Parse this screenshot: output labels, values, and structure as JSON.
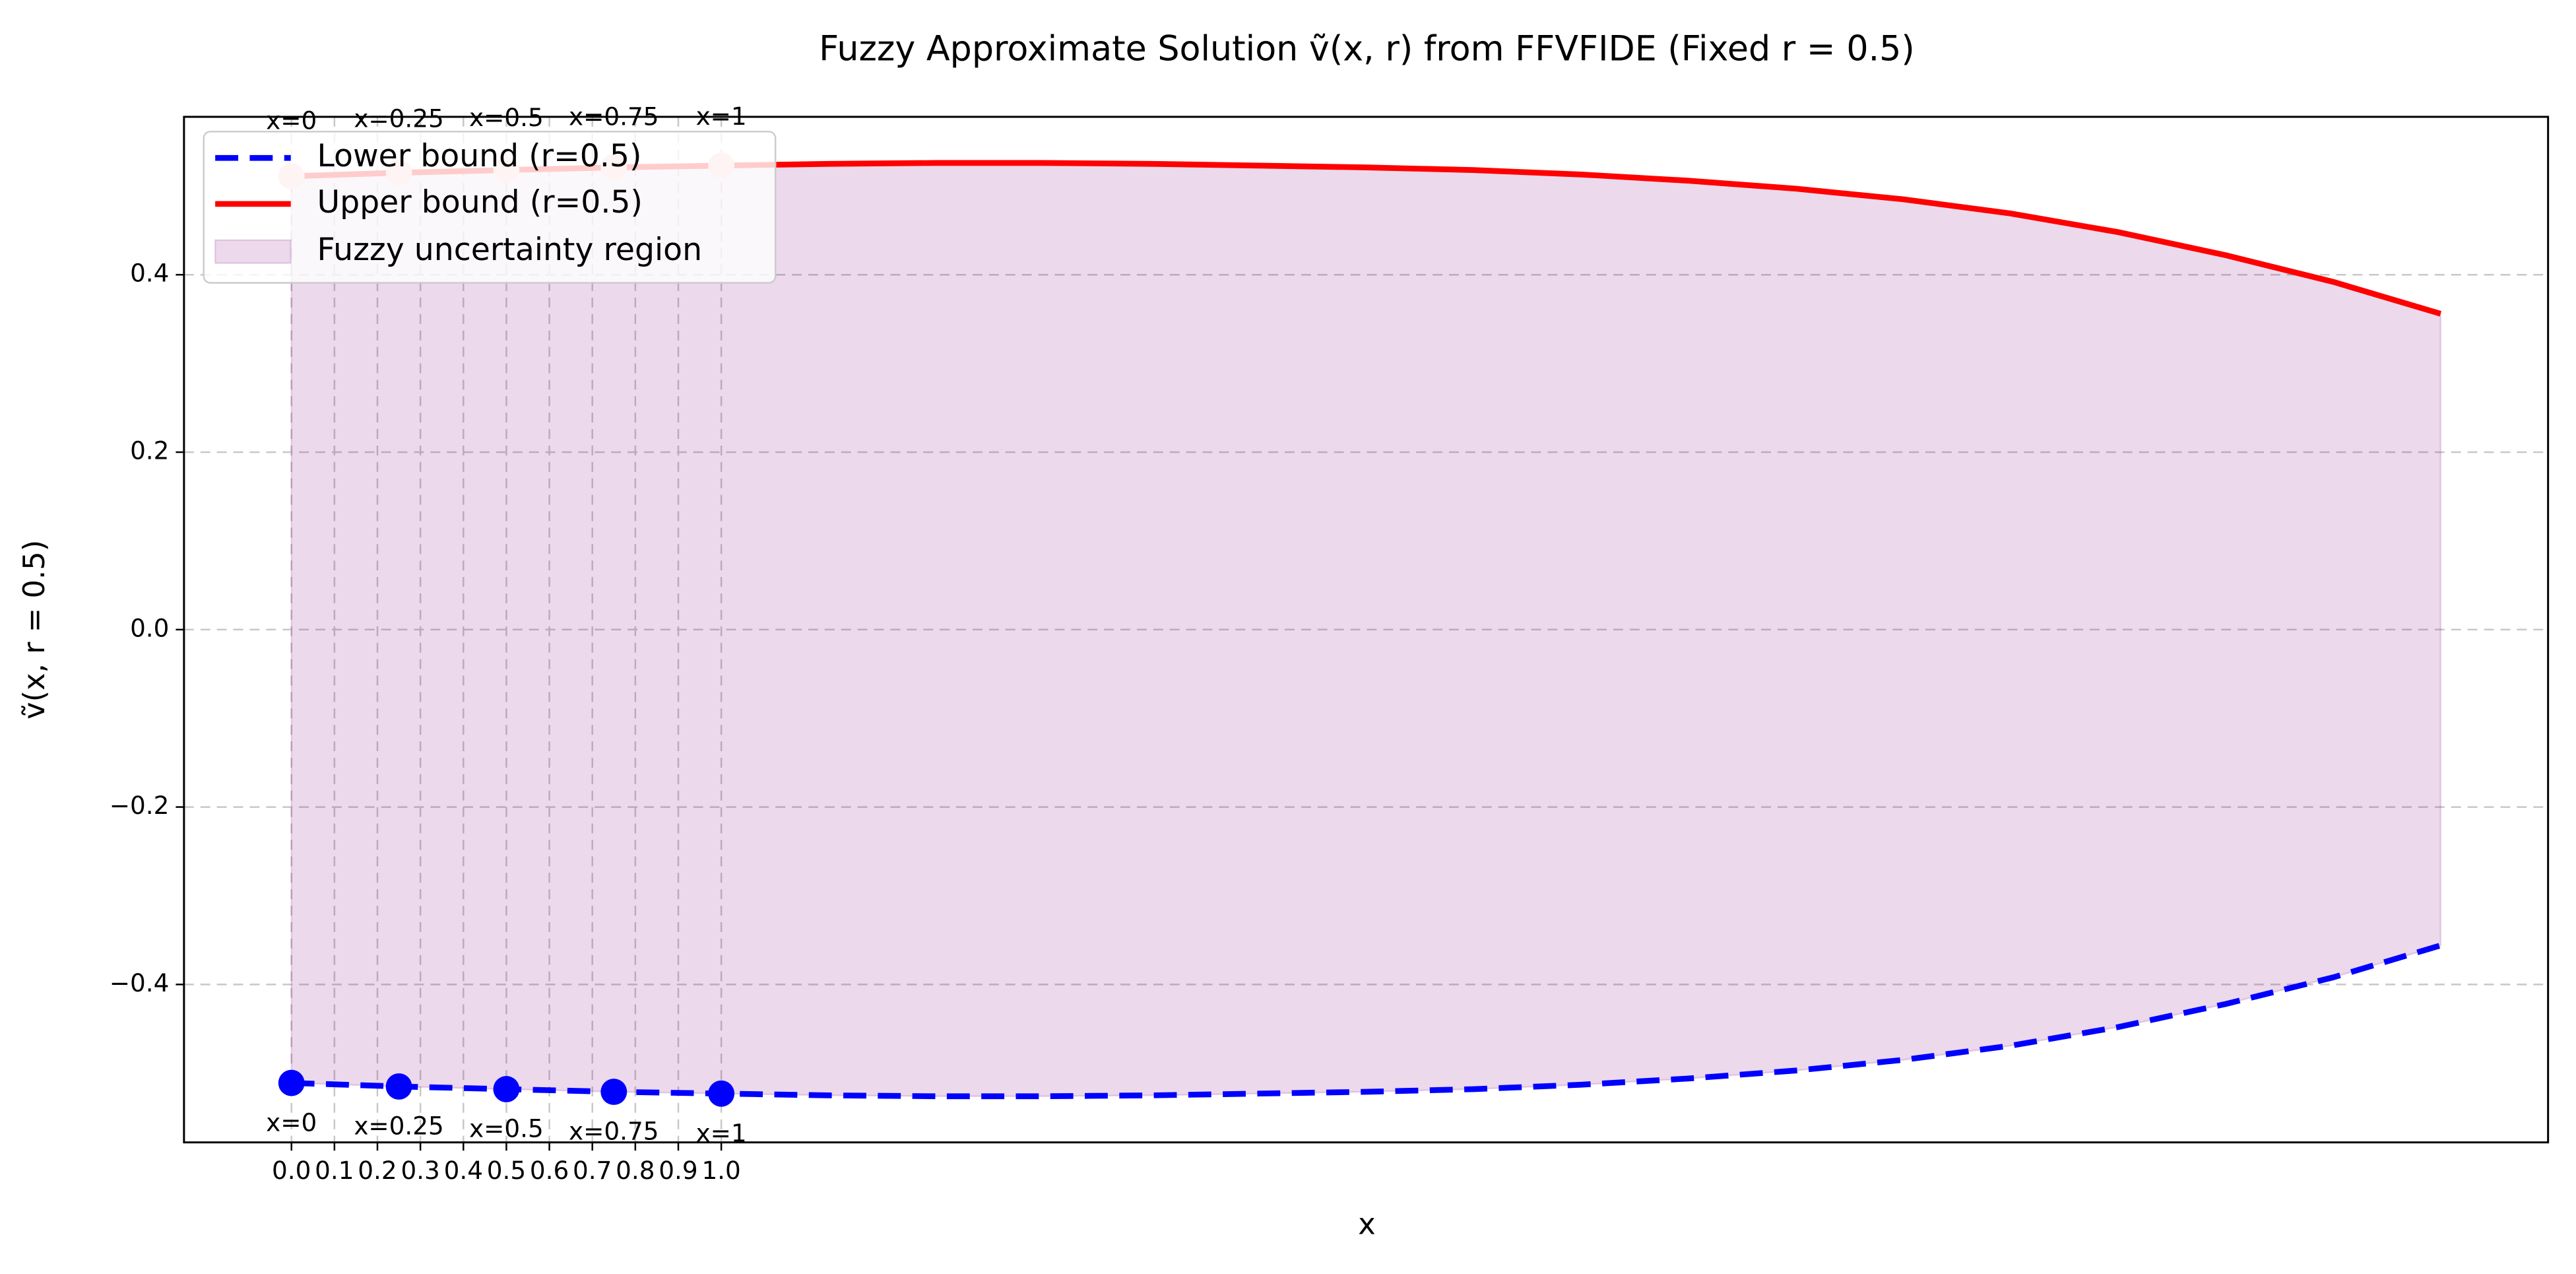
{
  "chart_data": {
    "type": "line",
    "title": "Fuzzy Approximate Solution ṽ(x, r) from FFVFIDE (Fixed r = 0.5)",
    "x_label": "x",
    "y_label": "ṽ(x, r = 0.5)",
    "x": [
      0,
      0.25,
      0.5,
      0.75,
      1.0,
      1.25,
      1.5,
      1.75,
      2.0,
      2.25,
      2.5,
      2.75,
      3.0,
      3.25,
      3.5,
      3.75,
      4.0,
      4.25,
      4.5,
      4.75,
      5.0
    ],
    "series": [
      {
        "name": "Lower bound (r=0.5)",
        "color": "#0000ff",
        "linestyle": "dashed",
        "marker_color": "#0000ff",
        "values": [
          -0.511,
          -0.515,
          -0.518,
          -0.521,
          -0.523,
          -0.525,
          -0.526,
          -0.526,
          -0.525,
          -0.523,
          -0.521,
          -0.518,
          -0.513,
          -0.506,
          -0.497,
          -0.485,
          -0.469,
          -0.448,
          -0.422,
          -0.392,
          -0.356
        ]
      },
      {
        "name": "Upper bound (r=0.5)",
        "color": "#ff0000",
        "linestyle": "solid",
        "marker_color": "#ffc8c8",
        "values": [
          0.511,
          0.515,
          0.518,
          0.521,
          0.523,
          0.525,
          0.526,
          0.526,
          0.525,
          0.523,
          0.521,
          0.518,
          0.513,
          0.506,
          0.497,
          0.485,
          0.469,
          0.448,
          0.422,
          0.392,
          0.356
        ]
      }
    ],
    "fill": {
      "name": "Fuzzy uncertainty region",
      "color": "#800080",
      "alpha": 0.15
    },
    "point_labels": [
      "x=0",
      "x=0.25",
      "x=0.5",
      "x=0.75",
      "x=1"
    ],
    "xlim": [
      -0.25,
      5.25
    ],
    "ylim": [
      -0.578,
      0.578
    ],
    "xticks": [
      {
        "value": 0,
        "label": "0.0"
      },
      0.1,
      0.2,
      0.3,
      0.4,
      0.5,
      0.6,
      0.7,
      0.8,
      0.9,
      {
        "value": 1,
        "label": "1.0"
      }
    ],
    "yticks": [
      {
        "value": -0.4,
        "label": "−0.4"
      },
      {
        "value": -0.2,
        "label": "−0.2"
      },
      {
        "value": 0,
        "label": "0.0"
      },
      0.2,
      0.4
    ],
    "grid": true,
    "legend": "upper left"
  }
}
